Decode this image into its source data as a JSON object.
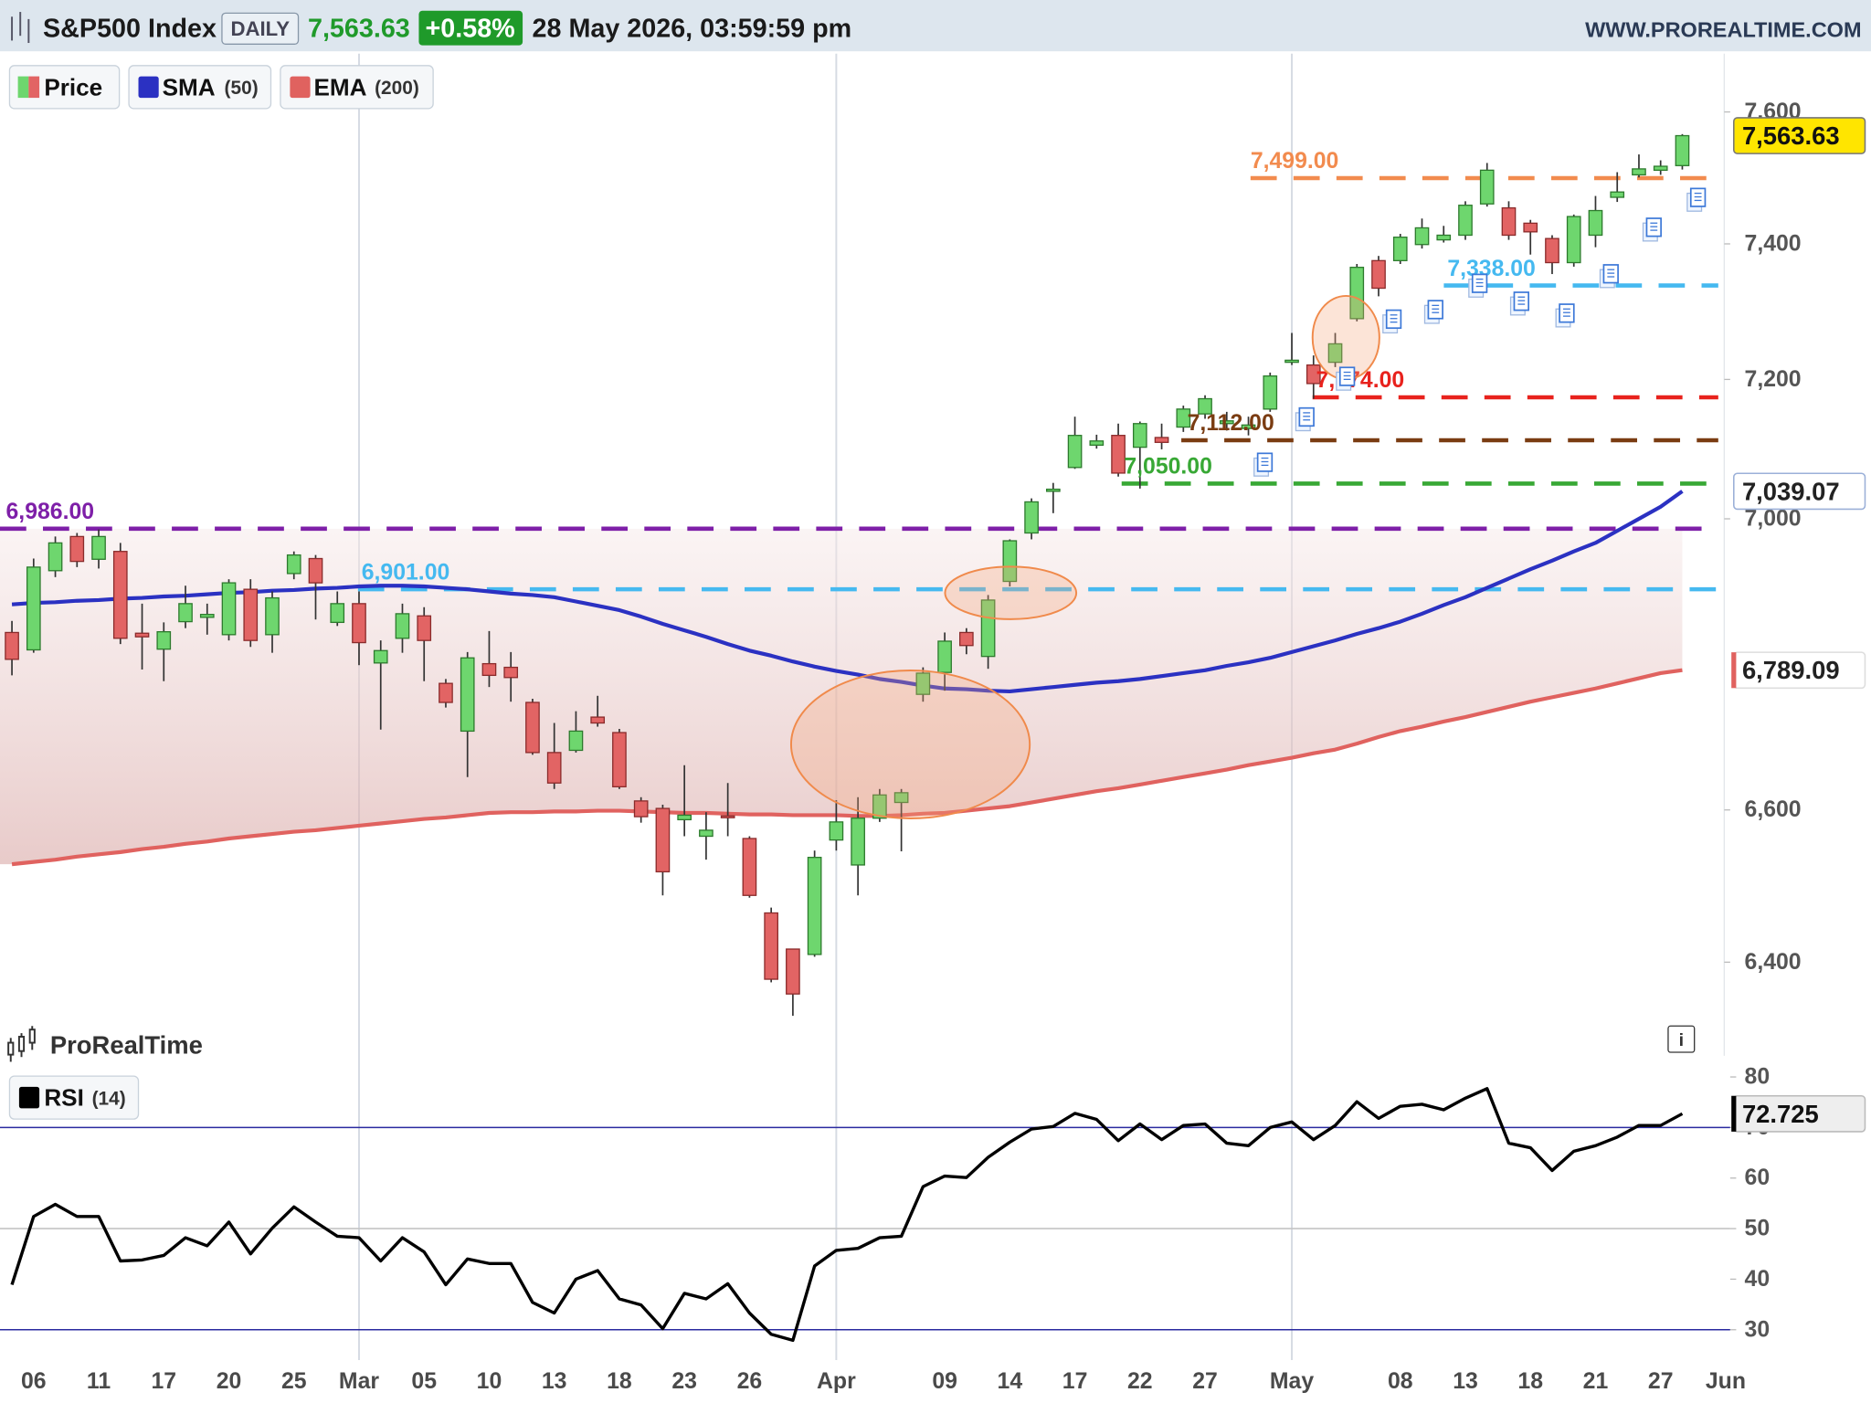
{
  "header": {
    "instrument": "S&P500 Index",
    "period": "DAILY",
    "last": "7,563.63",
    "change": "+0.58%",
    "datetime": "28 May 2026, 03:59:59 pm",
    "site": "WWW.PROREALTIME.COM"
  },
  "watermark": "ProRealTime",
  "chart_data": [
    {
      "type": "candlestick",
      "price_name": "Price",
      "last_label": "7,563.63",
      "categories": [
        null,
        "06",
        null,
        null,
        "11",
        null,
        null,
        "17",
        null,
        null,
        "20",
        null,
        null,
        "25",
        null,
        null,
        "Mar",
        null,
        null,
        "05",
        null,
        null,
        "10",
        null,
        null,
        "13",
        null,
        null,
        "18",
        null,
        null,
        "23",
        null,
        null,
        "26",
        null,
        null,
        null,
        "Apr",
        null,
        null,
        null,
        null,
        "09",
        null,
        null,
        "14",
        null,
        null,
        "17",
        null,
        null,
        "22",
        null,
        null,
        "27",
        null,
        null,
        null,
        "May",
        null,
        null,
        null,
        null,
        "08",
        null,
        null,
        "13",
        null,
        null,
        "18",
        null,
        null,
        "21",
        null,
        null,
        "27",
        null,
        null,
        "Jun"
      ],
      "open": [
        6841,
        6817,
        6927,
        6975,
        6943,
        6954,
        6840,
        6818,
        6856,
        6862,
        6838,
        6901,
        6838,
        6923,
        6944,
        6855,
        6881,
        6799,
        6833,
        6864,
        6771,
        6706,
        6798,
        6793,
        6745,
        6677,
        6680,
        6725,
        6704,
        6612,
        6602,
        6587,
        6565,
        6592,
        6562,
        6464,
        6417,
        6410,
        6560,
        6527,
        6589,
        6610,
        6756,
        6786,
        6841,
        6808,
        6912,
        6980,
        7039,
        7073,
        7105,
        7119,
        7102,
        7116,
        7131,
        7150,
        7136,
        7129,
        7157,
        7225,
        7221,
        7225,
        7289,
        7375,
        7375,
        7399,
        7406,
        7413,
        7460,
        7454,
        7431,
        7408,
        7372,
        7413,
        7470,
        7504,
        7511,
        7518,
        null,
        null
      ],
      "high": [
        6857,
        6944,
        6975,
        6980,
        6985,
        6966,
        6881,
        6855,
        6906,
        6881,
        6915,
        6915,
        6898,
        6954,
        6949,
        6898,
        6898,
        6830,
        6881,
        6876,
        6777,
        6814,
        6843,
        6814,
        6750,
        6717,
        6733,
        6754,
        6709,
        6617,
        6607,
        6660,
        6597,
        6636,
        6565,
        6471,
        6417,
        6546,
        6613,
        6617,
        6628,
        6628,
        6793,
        6841,
        6847,
        6893,
        6971,
        7029,
        7051,
        7146,
        7120,
        7136,
        7139,
        7136,
        7162,
        7177,
        7153,
        7146,
        7210,
        7268,
        7235,
        7268,
        7370,
        7382,
        7415,
        7438,
        7427,
        7464,
        7522,
        7464,
        7436,
        7413,
        7444,
        7472,
        7508,
        7535,
        7526,
        7566,
        null,
        null
      ],
      "low": [
        6782,
        6813,
        6918,
        6932,
        6930,
        6825,
        6790,
        6774,
        6847,
        6838,
        6830,
        6821,
        6813,
        6915,
        6859,
        6850,
        6796,
        6708,
        6813,
        6774,
        6738,
        6644,
        6766,
        6746,
        6674,
        6628,
        6677,
        6712,
        6628,
        6583,
        6487,
        6565,
        6534,
        6565,
        6484,
        6374,
        6331,
        6407,
        6546,
        6487,
        6584,
        6545,
        6746,
        6761,
        6811,
        6791,
        6905,
        6971,
        7008,
        7071,
        7100,
        7060,
        7043,
        7099,
        7124,
        7143,
        7126,
        7119,
        7153,
        7221,
        7172,
        7218,
        7285,
        7322,
        7370,
        7393,
        7402,
        7406,
        7456,
        7406,
        7384,
        7355,
        7366,
        7395,
        7463,
        7500,
        7504,
        7512,
        null,
        null
      ],
      "close": [
        6804,
        6932,
        6966,
        6940,
        6975,
        6833,
        6835,
        6842,
        6881,
        6866,
        6910,
        6830,
        6889,
        6949,
        6910,
        6881,
        6827,
        6816,
        6867,
        6830,
        6745,
        6806,
        6782,
        6779,
        6677,
        6636,
        6706,
        6717,
        6631,
        6591,
        6518,
        6593,
        6573,
        6590,
        6487,
        6378,
        6359,
        6537,
        6584,
        6589,
        6620,
        6623,
        6785,
        6829,
        6823,
        6886,
        6969,
        7024,
        7042,
        7119,
        7111,
        7065,
        7136,
        7109,
        7157,
        7172,
        7140,
        7134,
        7205,
        7228,
        7194,
        7252,
        7365,
        7334,
        7410,
        7424,
        7413,
        7458,
        7511,
        7413,
        7418,
        7372,
        7441,
        7450,
        7478,
        7513,
        7517,
        7563.63,
        null,
        null
      ],
      "up_color": "#6ed66e",
      "down_color": "#e26464",
      "series": [
        {
          "name": "SMA",
          "param": "(50)",
          "color": "#2b31c2",
          "last_label": "7,039.07",
          "values": [
            6880,
            6882,
            6883,
            6885,
            6886,
            6888,
            6889,
            6891,
            6892,
            6894,
            6896,
            6897,
            6899,
            6900,
            6902,
            6903,
            6905,
            6906,
            6906,
            6905,
            6903,
            6901,
            6898,
            6895,
            6893,
            6890,
            6884,
            6878,
            6872,
            6863,
            6853,
            6844,
            6835,
            6825,
            6816,
            6809,
            6801,
            6794,
            6788,
            6783,
            6777,
            6773,
            6768,
            6764,
            6763,
            6761,
            6760,
            6763,
            6766,
            6769,
            6772,
            6774,
            6777,
            6781,
            6785,
            6789,
            6795,
            6800,
            6806,
            6814,
            6822,
            6830,
            6839,
            6847,
            6856,
            6867,
            6879,
            6890,
            6903,
            6916,
            6929,
            6941,
            6954,
            6966,
            6983,
            7000,
            7017,
            7039.07,
            null,
            null
          ]
        },
        {
          "name": "EMA",
          "param": "(200)",
          "color": "#e0625f",
          "last_label": "6,789.09",
          "values": [
            6528,
            6531,
            6534,
            6538,
            6541,
            6544,
            6548,
            6551,
            6555,
            6558,
            6562,
            6565,
            6568,
            6571,
            6573,
            6576,
            6579,
            6582,
            6585,
            6588,
            6590,
            6593,
            6596,
            6597,
            6597,
            6598,
            6598,
            6599,
            6599,
            6598,
            6597,
            6596,
            6596,
            6595,
            6594,
            6594,
            6593,
            6593,
            6593,
            6592,
            6592,
            6593,
            6595,
            6596,
            6599,
            6602,
            6605,
            6610,
            6615,
            6620,
            6625,
            6629,
            6634,
            6639,
            6644,
            6649,
            6654,
            6660,
            6665,
            6670,
            6676,
            6681,
            6689,
            6698,
            6706,
            6712,
            6719,
            6725,
            6732,
            6739,
            6746,
            6752,
            6758,
            6764,
            6771,
            6778,
            6785,
            6789.09,
            null,
            null
          ]
        }
      ],
      "levels": [
        {
          "value": 6986,
          "label": "6,986.00",
          "color": "#7e1fa8"
        },
        {
          "value": 6901,
          "label": "6,901.00",
          "color": "#45b9f0"
        },
        {
          "value": 7050,
          "label": "7,050.00",
          "color": "#38a835"
        },
        {
          "value": 7112,
          "label": "7,112.00",
          "color": "#7a3c12"
        },
        {
          "value": 7174,
          "label": "7,174.00",
          "color": "#e8221d"
        },
        {
          "value": 7338,
          "label": "7,338.00",
          "color": "#45b9f0"
        },
        {
          "value": 7499,
          "label": "7,499.00",
          "color": "#f28b4e"
        }
      ],
      "ylim": [
        6280,
        7690
      ],
      "log": true,
      "yticks": [
        {
          "value": 6400,
          "label": "6,400"
        },
        {
          "value": 6600,
          "label": "6,600"
        },
        {
          "value": 7000,
          "label": "7,000"
        },
        {
          "value": 7200,
          "label": "7,200"
        },
        {
          "value": 7400,
          "label": "7,400"
        },
        {
          "value": 7600,
          "label": "7,600"
        }
      ]
    },
    {
      "type": "line",
      "name": "RSI",
      "param": "(14)",
      "color": "#000000",
      "last_label": "72.725",
      "values": [
        38.9,
        52.4,
        54.8,
        52.4,
        52.4,
        43.6,
        43.8,
        44.7,
        48.2,
        46.6,
        51.3,
        45,
        50.1,
        54.3,
        51.3,
        48.5,
        48.2,
        43.6,
        48.2,
        45.4,
        38.9,
        44,
        43.1,
        43.1,
        35.4,
        33.3,
        40,
        41.7,
        36.1,
        34.9,
        30.2,
        37.2,
        36.1,
        39.1,
        33.3,
        29.1,
        27.9,
        42.6,
        45.7,
        46.1,
        48.2,
        48.5,
        58.3,
        60.4,
        60.1,
        64.1,
        67.1,
        69.7,
        70.2,
        72.8,
        71.6,
        67.4,
        70.7,
        67.6,
        70.4,
        70.7,
        66.9,
        66.4,
        70,
        71.1,
        67.6,
        70.4,
        75.1,
        71.8,
        74.2,
        74.6,
        73.5,
        75.8,
        77.7,
        66.9,
        66,
        61.5,
        65.3,
        66.4,
        68.1,
        70.4,
        70.4,
        72.725,
        null,
        null
      ],
      "levels": [
        {
          "value": 30,
          "color": "#2a2aa0"
        },
        {
          "value": 50,
          "color": "#c4c4c4"
        },
        {
          "value": 70,
          "color": "#2a2aa0"
        }
      ],
      "ylim": [
        24,
        83
      ],
      "yticks": [
        30,
        40,
        50,
        60,
        70,
        80
      ]
    }
  ]
}
